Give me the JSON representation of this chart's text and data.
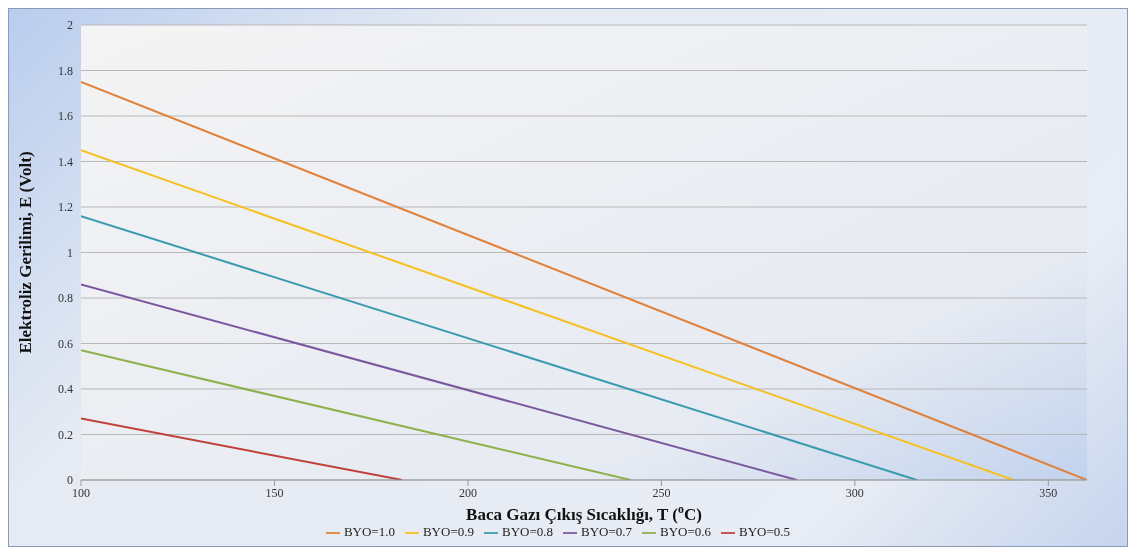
{
  "chart_data": {
    "type": "line",
    "xlabel": "Baca Gazı Çıkış Sıcaklığı, T ($^{o}$C)",
    "ylabel": "Elektroliz Gerilimi, E (Volt)",
    "xlim": [
      100,
      360
    ],
    "xticks": [
      100,
      150,
      200,
      250,
      300,
      350
    ],
    "ylim": [
      0,
      2
    ],
    "yticks": [
      0,
      0.2,
      0.4,
      0.6,
      0.8,
      1,
      1.2,
      1.4,
      1.6,
      1.8,
      2
    ],
    "grid": "y",
    "legend": "bottom",
    "marker": "none",
    "line_style": "solid",
    "series": [
      {
        "name": "BYO=1.0",
        "color": "#e0803a",
        "x": [
          100,
          360
        ],
        "values": [
          1.75,
          0
        ]
      },
      {
        "name": "BYO=0.9",
        "color": "#f5c020",
        "x": [
          100,
          341
        ],
        "values": [
          1.45,
          0
        ]
      },
      {
        "name": "BYO=0.8",
        "color": "#3a9bb0",
        "x": [
          100,
          316
        ],
        "values": [
          1.16,
          0
        ]
      },
      {
        "name": "BYO=0.7",
        "color": "#7a579e",
        "x": [
          100,
          285
        ],
        "values": [
          0.86,
          0
        ]
      },
      {
        "name": "BYO=0.6",
        "color": "#8db04a",
        "x": [
          100,
          242
        ],
        "values": [
          0.57,
          0
        ]
      },
      {
        "name": "BYO=0.5",
        "color": "#c0403a",
        "x": [
          100,
          183
        ],
        "values": [
          0.27,
          0
        ]
      }
    ]
  }
}
